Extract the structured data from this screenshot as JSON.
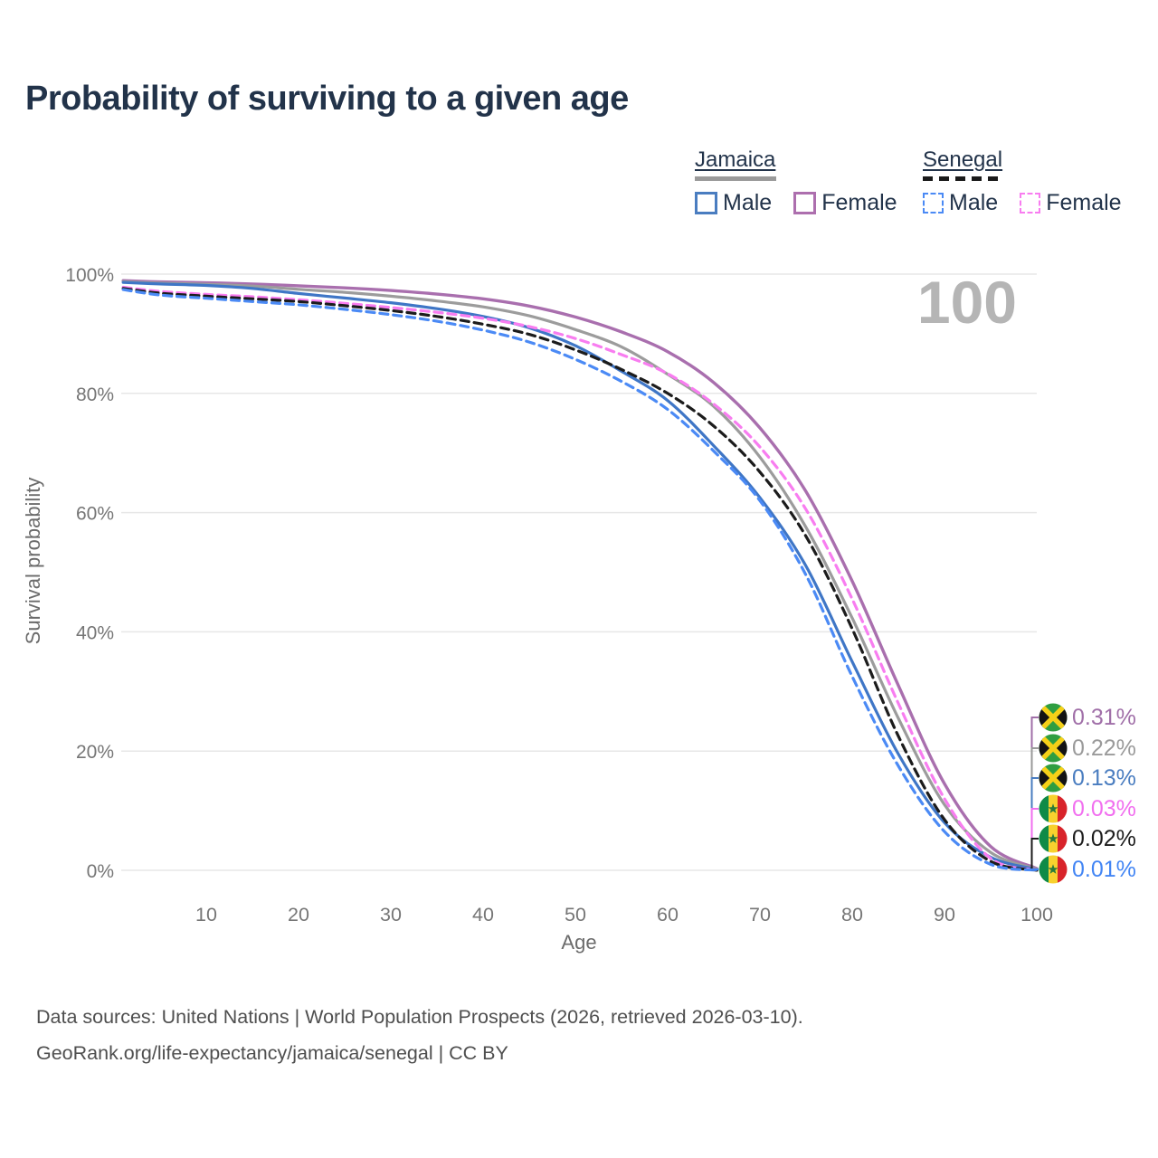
{
  "title": "Probability of surviving to a given age",
  "legend": {
    "jamaica": {
      "label": "Jamaica",
      "male_label": "Male",
      "female_label": "Female",
      "line_style": "solid",
      "line_color": "#9a9a9a",
      "male_color": "#4a7dc0",
      "female_color": "#ad6fae"
    },
    "senegal": {
      "label": "Senegal",
      "male_label": "Male",
      "female_label": "Female",
      "line_style": "dashed",
      "line_color": "#1a1a1a",
      "male_color": "#4b8af5",
      "female_color": "#f87df0"
    }
  },
  "watermark_age": "100",
  "chart_data": {
    "type": "line",
    "title": "Probability of surviving to a given age",
    "xlabel": "Age",
    "ylabel": "Survival probability",
    "xlim": [
      1,
      100
    ],
    "ylim": [
      0,
      100
    ],
    "grid": "horizontal-only",
    "legend_position": "top-right",
    "xticks": [
      10,
      20,
      30,
      40,
      50,
      60,
      70,
      80,
      90,
      100
    ],
    "yticks": [
      0,
      20,
      40,
      60,
      80,
      100
    ],
    "ytick_suffix": "%",
    "ages": [
      1,
      5,
      10,
      15,
      20,
      25,
      30,
      35,
      40,
      45,
      50,
      55,
      60,
      65,
      70,
      75,
      80,
      85,
      90,
      95,
      100
    ],
    "series": [
      {
        "name": "Jamaica Female",
        "country": "Jamaica",
        "group": "Female",
        "color": "#a96fae",
        "dashed": false,
        "width": 3.4,
        "flag": "jamaica",
        "end_label": "0.31%",
        "end_label_color": "#a06fa8",
        "values": [
          98.9,
          98.7,
          98.55,
          98.35,
          98.05,
          97.7,
          97.25,
          96.65,
          95.85,
          94.65,
          92.8,
          90.3,
          87.0,
          81.8,
          74.2,
          63.5,
          48.5,
          31.0,
          14.5,
          4.0,
          0.31
        ]
      },
      {
        "name": "Jamaica Total",
        "country": "Jamaica",
        "group": "Total",
        "color": "#9c9c9c",
        "dashed": false,
        "width": 3.2,
        "flag": "jamaica",
        "end_label": "0.22%",
        "end_label_color": "#9a9a9a",
        "values": [
          98.75,
          98.5,
          98.3,
          98.0,
          97.45,
          96.95,
          96.3,
          95.5,
          94.5,
          93.0,
          90.7,
          87.8,
          83.2,
          77.8,
          69.3,
          57.5,
          42.3,
          25.5,
          11.0,
          3.0,
          0.22
        ]
      },
      {
        "name": "Jamaica Male",
        "country": "Jamaica",
        "group": "Male",
        "color": "#3f76c6",
        "dashed": false,
        "width": 3.2,
        "flag": "jamaica",
        "end_label": "0.13%",
        "end_label_color": "#4a7dc0",
        "values": [
          98.6,
          98.35,
          98.1,
          97.6,
          96.75,
          96.0,
          95.2,
          94.2,
          92.9,
          91.0,
          88.0,
          83.7,
          78.8,
          71.2,
          62.5,
          51.0,
          35.0,
          19.5,
          8.0,
          2.2,
          0.13
        ]
      },
      {
        "name": "Senegal Female",
        "country": "Senegal",
        "group": "Female",
        "color": "#f87df0",
        "dashed": true,
        "width": 3.2,
        "flag": "senegal",
        "end_label": "0.03%",
        "end_label_color": "#f16fef",
        "values": [
          97.8,
          97.1,
          96.6,
          96.2,
          95.7,
          95.1,
          94.4,
          93.6,
          92.6,
          91.2,
          89.2,
          86.5,
          83.3,
          78.2,
          71.0,
          60.5,
          45.5,
          28.0,
          12.0,
          2.0,
          0.03
        ]
      },
      {
        "name": "Senegal Total",
        "country": "Senegal",
        "group": "Total",
        "color": "#1c1c1c",
        "dashed": true,
        "width": 3.2,
        "flag": "senegal",
        "end_label": "0.02%",
        "end_label_color": "#1c1c1c",
        "values": [
          97.6,
          96.8,
          96.3,
          95.85,
          95.4,
          94.7,
          93.9,
          92.9,
          91.6,
          89.9,
          87.3,
          84.0,
          80.0,
          74.5,
          66.8,
          56.0,
          40.5,
          22.5,
          8.5,
          1.5,
          0.02
        ]
      },
      {
        "name": "Senegal Male",
        "country": "Senegal",
        "group": "Male",
        "color": "#4b8af5",
        "dashed": true,
        "width": 3.2,
        "flag": "senegal",
        "end_label": "0.01%",
        "end_label_color": "#4285f4",
        "values": [
          97.4,
          96.5,
          95.95,
          95.4,
          94.85,
          94.1,
          93.2,
          92.1,
          90.6,
          88.6,
          85.7,
          82.0,
          77.3,
          70.3,
          62.0,
          49.5,
          32.5,
          17.5,
          6.5,
          1.0,
          0.01
        ]
      }
    ]
  },
  "icons": {
    "jamaica_flag": {
      "green": "#2f9e41",
      "black": "#131313",
      "gold": "#f5d018"
    },
    "senegal_flag": {
      "green": "#0f8a47",
      "yellow": "#f8d12e",
      "red": "#d8232a",
      "star": "#2a7a3b"
    }
  },
  "axis_colors": {
    "grid": "#e7e7e7",
    "tick_text": "#767676",
    "watermark": "#b5b5b5"
  },
  "footer": {
    "line1": "Data sources: United Nations | World Population Prospects (2026, retrieved 2026-03-10).",
    "line2": "GeoRank.org/life-expectancy/jamaica/senegal | CC BY"
  }
}
